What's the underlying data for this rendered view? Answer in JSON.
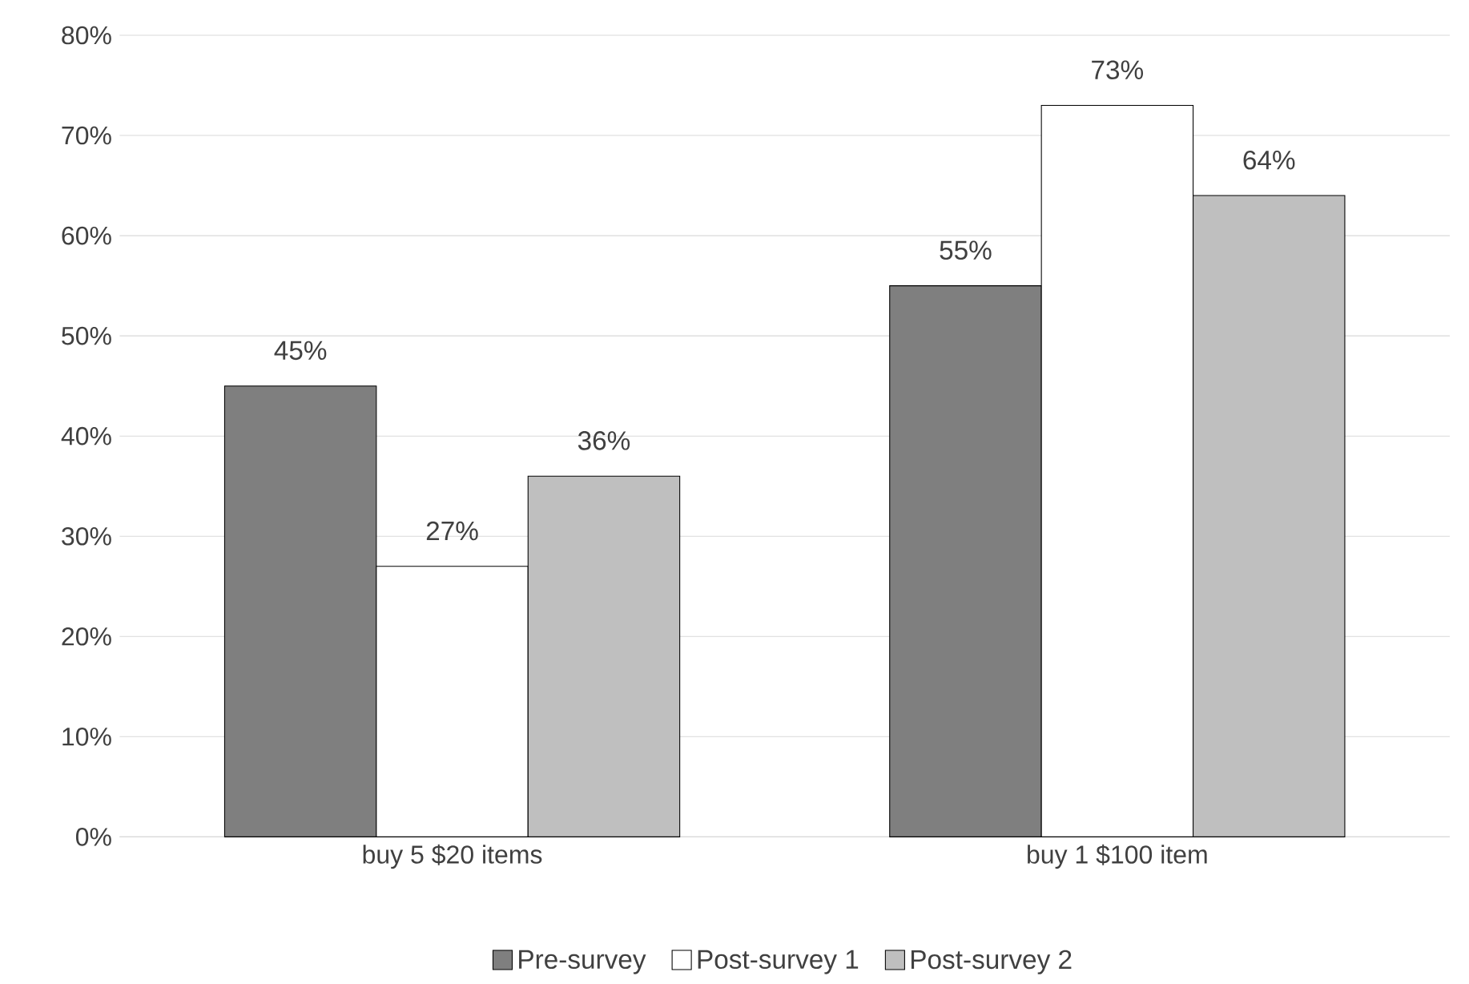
{
  "chart_data": {
    "type": "bar",
    "categories": [
      "buy 5 $20 items",
      "buy 1 $100 item"
    ],
    "series": [
      {
        "name": "Pre-survey",
        "color": "#7f7f7f",
        "values": [
          45,
          55
        ],
        "value_labels": [
          "45%",
          "55%"
        ]
      },
      {
        "name": "Post-survey 1",
        "color": "#ffffff",
        "values": [
          27,
          73
        ],
        "value_labels": [
          "27%",
          "73%"
        ]
      },
      {
        "name": "Post-survey 2",
        "color": "#bfbfbf",
        "values": [
          36,
          64
        ],
        "value_labels": [
          "36%",
          "64%"
        ]
      }
    ],
    "ylim": [
      0,
      80
    ],
    "yticks": [
      {
        "value": 0,
        "label": "0%"
      },
      {
        "value": 10,
        "label": "10%"
      },
      {
        "value": 20,
        "label": "20%"
      },
      {
        "value": 30,
        "label": "30%"
      },
      {
        "value": 40,
        "label": "40%"
      },
      {
        "value": 50,
        "label": "50%"
      },
      {
        "value": 60,
        "label": "60%"
      },
      {
        "value": 70,
        "label": "70%"
      },
      {
        "value": 80,
        "label": "80%"
      }
    ],
    "grid": "y",
    "legend": "bottom"
  }
}
